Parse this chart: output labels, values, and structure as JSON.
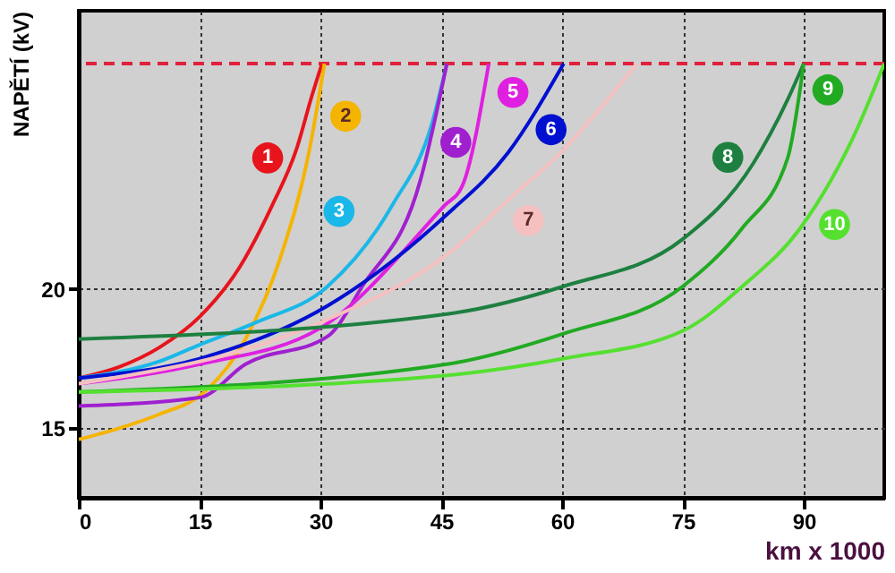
{
  "chart_data": {
    "type": "line",
    "xlabel": "km x 1000",
    "ylabel": "NAPĚTÍ (kV)",
    "xlim": [
      0,
      100
    ],
    "ylim": [
      12.5,
      30
    ],
    "xticks": [
      0,
      15,
      30,
      45,
      60,
      75,
      90
    ],
    "yticks": [
      15,
      20
    ],
    "grid": true,
    "marker": "none",
    "line_style": "solid",
    "ref_lines": [
      {
        "axis": "y",
        "value": 28.1,
        "color": "#e0203c",
        "line_style": "dashed"
      }
    ],
    "series": [
      {
        "name": "1",
        "color": "#e8141c",
        "x": [
          0,
          5,
          10,
          15,
          20,
          24,
          27,
          29,
          30.2
        ],
        "values": [
          16.8,
          17.2,
          17.9,
          19.0,
          20.8,
          23.0,
          25.0,
          27.0,
          28.1
        ]
      },
      {
        "name": "2",
        "color": "#f5b400",
        "x": [
          0,
          5,
          10,
          15.6,
          20.7,
          25,
          28.7,
          30.5
        ],
        "values": [
          14.6,
          15.0,
          15.5,
          16.3,
          18.2,
          21.1,
          25.1,
          28.1
        ]
      },
      {
        "name": "3",
        "color": "#1ab8e8",
        "x": [
          0,
          10,
          15,
          22,
          30.9,
          38.9,
          43.9,
          45.7
        ],
        "values": [
          16.8,
          17.4,
          18.0,
          18.8,
          20.1,
          23.0,
          26.0,
          28.1
        ]
      },
      {
        "name": "4",
        "color": "#a020d0",
        "x": [
          0,
          15,
          20.7,
          30.9,
          35.2,
          42.4,
          45.7
        ],
        "values": [
          15.8,
          16.1,
          17.3,
          18.3,
          20.1,
          23.9,
          28.1
        ]
      },
      {
        "name": "5",
        "color": "#e020e0",
        "x": [
          0,
          15,
          30,
          45.4,
          47.6,
          50.9
        ],
        "values": [
          16.6,
          17.3,
          18.6,
          23.0,
          23.7,
          28.1
        ]
      },
      {
        "name": "6",
        "color": "#0010d0",
        "x": [
          0,
          15,
          30.9,
          45.4,
          53.3,
          60.2
        ],
        "values": [
          16.8,
          17.5,
          19.4,
          22.6,
          24.9,
          28.1
        ]
      },
      {
        "name": "7",
        "color": "#f5c0c0",
        "x": [
          0,
          30,
          46,
          53.3,
          59.8,
          69.3
        ],
        "values": [
          16.6,
          18.8,
          21.3,
          23.2,
          24.9,
          28.1
        ]
      },
      {
        "name": "8",
        "color": "#1e8040",
        "x": [
          0,
          45.7,
          60.2,
          75,
          83.7,
          88,
          90
        ],
        "values": [
          18.2,
          19.1,
          20.1,
          21.8,
          24.5,
          26.8,
          28.1
        ]
      },
      {
        "name": "9",
        "color": "#22aa22",
        "x": [
          0,
          45.7,
          60.2,
          75,
          82.4,
          88,
          90
        ],
        "values": [
          16.3,
          17.3,
          18.4,
          20.1,
          22.2,
          24.7,
          28.1
        ]
      },
      {
        "name": "10",
        "color": "#55e030",
        "x": [
          0,
          45.7,
          60.2,
          75,
          82.4,
          89.6,
          96.7,
          100
        ],
        "values": [
          16.3,
          16.9,
          17.5,
          18.5,
          20.1,
          22.2,
          25.8,
          28.1
        ]
      }
    ]
  }
}
